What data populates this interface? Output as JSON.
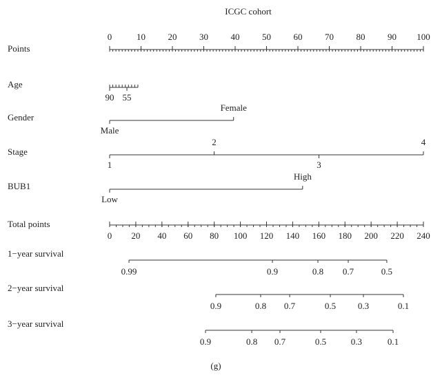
{
  "chart_data": {
    "type": "nomogram",
    "title": "ICGC cohort",
    "caption": "(g)",
    "points_axis": {
      "label": "Points",
      "lim": [
        0,
        100
      ],
      "ticks": [
        0,
        10,
        20,
        30,
        40,
        50,
        60,
        70,
        80,
        90,
        100
      ],
      "minor_step": 1
    },
    "variables": [
      {
        "label": "Age",
        "line": [
          0,
          9
        ],
        "minor_step": 1,
        "ticks": [
          {
            "value": 0,
            "label": "90",
            "side": "below"
          },
          {
            "value": 5.5,
            "label": "55",
            "side": "below"
          }
        ]
      },
      {
        "label": "Gender",
        "line": [
          0,
          39.5
        ],
        "ticks": [
          {
            "value": 0,
            "label": "Male",
            "side": "below"
          },
          {
            "value": 39.5,
            "label": "Female",
            "side": "above"
          }
        ]
      },
      {
        "label": "Stage",
        "line": [
          0,
          100
        ],
        "ticks": [
          {
            "value": 0,
            "label": "1",
            "side": "below"
          },
          {
            "value": 33.3,
            "label": "2",
            "side": "above"
          },
          {
            "value": 66.7,
            "label": "3",
            "side": "below"
          },
          {
            "value": 100,
            "label": "4",
            "side": "above"
          }
        ]
      },
      {
        "label": "BUB1",
        "line": [
          0,
          61.5
        ],
        "ticks": [
          {
            "value": 0,
            "label": "Low",
            "side": "below"
          },
          {
            "value": 61.5,
            "label": "High",
            "side": "above"
          }
        ]
      }
    ],
    "total_axis": {
      "label": "Total points",
      "lim": [
        0,
        240
      ],
      "ticks": [
        0,
        20,
        40,
        60,
        80,
        100,
        120,
        140,
        160,
        180,
        200,
        220,
        240
      ],
      "minor_step": 5
    },
    "survival": [
      {
        "label": "1−year survival",
        "line": [
          14.8,
          212
        ],
        "ticks": [
          {
            "value": 14.8,
            "label": "0.99"
          },
          {
            "value": 124.5,
            "label": "0.9"
          },
          {
            "value": 159.3,
            "label": "0.8"
          },
          {
            "value": 182.5,
            "label": "0.7"
          },
          {
            "value": 212,
            "label": "0.5"
          }
        ]
      },
      {
        "label": "2−year survival",
        "line": [
          81.2,
          224.7
        ],
        "ticks": [
          {
            "value": 81.2,
            "label": "0.9"
          },
          {
            "value": 115.5,
            "label": "0.8"
          },
          {
            "value": 137.7,
            "label": "0.7"
          },
          {
            "value": 168.8,
            "label": "0.5"
          },
          {
            "value": 194.1,
            "label": "0.3"
          },
          {
            "value": 224.7,
            "label": "0.1"
          }
        ]
      },
      {
        "label": "3−year survival",
        "line": [
          73.3,
          216.8
        ],
        "ticks": [
          {
            "value": 73.3,
            "label": "0.9"
          },
          {
            "value": 108.7,
            "label": "0.8"
          },
          {
            "value": 130.3,
            "label": "0.7"
          },
          {
            "value": 161.4,
            "label": "0.5"
          },
          {
            "value": 188.8,
            "label": "0.3"
          },
          {
            "value": 216.8,
            "label": "0.1"
          }
        ]
      }
    ]
  }
}
